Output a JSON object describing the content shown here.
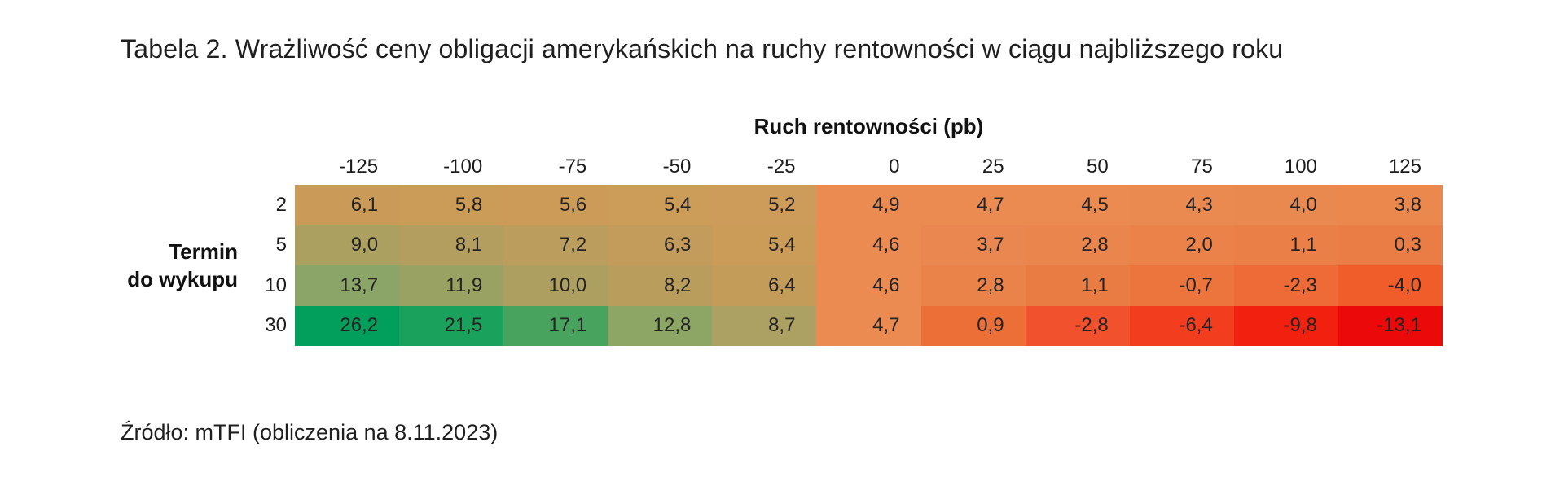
{
  "title": "Tabela 2. Wrażliwość ceny obligacji amerykańskich na ruchy rentowności w ciągu najbliższego roku",
  "source": "Źródło: mTFI (obliczenia na 8.11.2023)",
  "table": {
    "column_group_label": "Ruch rentowności (pb)",
    "row_group_label_line1": "Termin",
    "row_group_label_line2": "do wykupu",
    "columns": [
      "-125",
      "-100",
      "-75",
      "-50",
      "-25",
      "0",
      "25",
      "50",
      "75",
      "100",
      "125"
    ],
    "rows": [
      "2",
      "5",
      "10",
      "30"
    ],
    "cells": [
      [
        "6,1",
        "5,8",
        "5,6",
        "5,4",
        "5,2",
        "4,9",
        "4,7",
        "4,5",
        "4,3",
        "4,0",
        "3,8"
      ],
      [
        "9,0",
        "8,1",
        "7,2",
        "6,3",
        "5,4",
        "4,6",
        "3,7",
        "2,8",
        "2,0",
        "1,1",
        "0,3"
      ],
      [
        "13,7",
        "11,9",
        "10,0",
        "8,2",
        "6,4",
        "4,6",
        "2,8",
        "1,1",
        "-0,7",
        "-2,3",
        "-4,0"
      ],
      [
        "26,2",
        "21,5",
        "17,1",
        "12,8",
        "8,7",
        "4,7",
        "0,9",
        "-2,8",
        "-6,4",
        "-9,8",
        "-13,1"
      ]
    ],
    "cell_colors": [
      [
        "#CA9B58",
        "#CB9B58",
        "#CC9B58",
        "#CC9C59",
        "#CD9C5A",
        "#EB8B52",
        "#EB8B52",
        "#EB8A51",
        "#EA8950",
        "#EA894F",
        "#EA884E"
      ],
      [
        "#ACA061",
        "#B39E5F",
        "#BB9D5D",
        "#C39C5B",
        "#CB9B58",
        "#EB8B52",
        "#EA8750",
        "#E9854D",
        "#EA824A",
        "#EA7F47",
        "#EA7C45"
      ],
      [
        "#8AA567",
        "#9AA263",
        "#AC9F60",
        "#B99D5D",
        "#C49C5A",
        "#EB8B52",
        "#E98349",
        "#E97C42",
        "#EC753D",
        "#EE6A36",
        "#F15C2B"
      ],
      [
        "#019F5B",
        "#1AA25D",
        "#48A35F",
        "#8EA665",
        "#ACA162",
        "#EB8B52",
        "#EB6F36",
        "#F1512C",
        "#F33D1F",
        "#F2200F",
        "#EC0909"
      ]
    ]
  },
  "chart_data": {
    "type": "heatmap",
    "title": "Tabela 2. Wrażliwość ceny obligacji amerykańskich na ruchy rentowności w ciągu najbliższego roku",
    "xlabel": "Ruch rentowności (pb)",
    "ylabel": "Termin do wykupu",
    "x": [
      -125,
      -100,
      -75,
      -50,
      -25,
      0,
      25,
      50,
      75,
      100,
      125
    ],
    "y": [
      2,
      5,
      10,
      30
    ],
    "values": [
      [
        6.1,
        5.8,
        5.6,
        5.4,
        5.2,
        4.9,
        4.7,
        4.5,
        4.3,
        4.0,
        3.8
      ],
      [
        9.0,
        8.1,
        7.2,
        6.3,
        5.4,
        4.6,
        3.7,
        2.8,
        2.0,
        1.1,
        0.3
      ],
      [
        13.7,
        11.9,
        10.0,
        8.2,
        6.4,
        4.6,
        2.8,
        1.1,
        -0.7,
        -2.3,
        -4.0
      ],
      [
        26.2,
        21.5,
        17.1,
        12.8,
        8.7,
        4.7,
        0.9,
        -2.8,
        -6.4,
        -9.8,
        -13.1
      ]
    ],
    "value_format": "decimal-comma, 1 fraction digit",
    "colorscale": {
      "max_green": "#019F5B",
      "mid_tan": "#CB9B58",
      "mid_orange": "#EB8B52",
      "min_red": "#EC0909"
    },
    "legend": "none",
    "grid": false,
    "source": "Źródło: mTFI (obliczenia na 8.11.2023)"
  }
}
